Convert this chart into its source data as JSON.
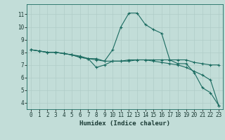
{
  "xlabel": "Humidex (Indice chaleur)",
  "bg_color": "#c2ddd8",
  "grid_color_major": "#b0ccc8",
  "grid_color_minor": "#d0e8e4",
  "line_color": "#1a6b60",
  "xlim": [
    -0.5,
    23.5
  ],
  "ylim": [
    3.5,
    11.8
  ],
  "yticks": [
    4,
    5,
    6,
    7,
    8,
    9,
    10,
    11
  ],
  "xticks": [
    0,
    1,
    2,
    3,
    4,
    5,
    6,
    7,
    8,
    9,
    10,
    11,
    12,
    13,
    14,
    15,
    16,
    17,
    18,
    19,
    20,
    21,
    22,
    23
  ],
  "line1_x": [
    0,
    1,
    2,
    3,
    4,
    5,
    6,
    7,
    8,
    9,
    10,
    11,
    12,
    13,
    14,
    15,
    16,
    17,
    18,
    19,
    20,
    21,
    22,
    23
  ],
  "line1_y": [
    8.2,
    8.1,
    8.0,
    8.0,
    7.9,
    7.8,
    7.7,
    7.5,
    7.5,
    7.3,
    8.2,
    10.0,
    11.1,
    11.1,
    10.2,
    9.8,
    9.5,
    7.4,
    7.1,
    7.1,
    6.4,
    5.2,
    4.8,
    3.8
  ],
  "line2_x": [
    0,
    1,
    2,
    3,
    4,
    5,
    6,
    7,
    8,
    9,
    10,
    11,
    12,
    13,
    14,
    15,
    16,
    17,
    18,
    19,
    20,
    21,
    22,
    23
  ],
  "line2_y": [
    8.2,
    8.1,
    8.0,
    8.0,
    7.9,
    7.8,
    7.6,
    7.5,
    7.4,
    7.3,
    7.3,
    7.3,
    7.4,
    7.4,
    7.4,
    7.4,
    7.4,
    7.4,
    7.4,
    7.4,
    7.2,
    7.1,
    7.0,
    7.0
  ],
  "line3_x": [
    0,
    1,
    2,
    3,
    4,
    5,
    6,
    7,
    8,
    9,
    10,
    11,
    12,
    13,
    14,
    15,
    16,
    17,
    18,
    19,
    20,
    21,
    22,
    23
  ],
  "line3_y": [
    8.2,
    8.1,
    8.0,
    8.0,
    7.9,
    7.8,
    7.6,
    7.5,
    6.8,
    7.0,
    7.3,
    7.3,
    7.3,
    7.4,
    7.4,
    7.3,
    7.2,
    7.1,
    7.0,
    6.8,
    6.5,
    6.2,
    5.8,
    3.8
  ]
}
